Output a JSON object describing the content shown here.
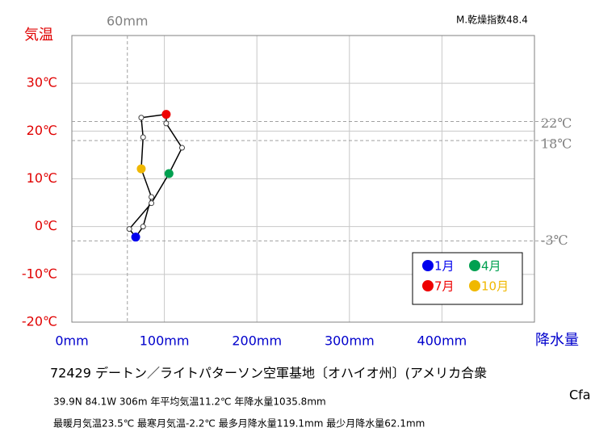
{
  "chart_data": {
    "type": "line",
    "title": "72429  デートン／ライトパターソン空軍基地〔オハイオ州〕(アメリカ合衆",
    "climate_class": "Cfa",
    "index_label": "M.乾燥指数48.4",
    "stats": [
      "39.9N  84.1W 306m  年平均気温11.2℃ 年降水量1035.8mm",
      "最暖月気温23.5℃ 最寒月気温-2.2℃ 最多月降水量119.1mm 最少月降水量62.1mm"
    ],
    "xlabel": "降水量",
    "ylabel": "気温",
    "xlim": [
      0,
      500
    ],
    "ylim": [
      -20,
      40
    ],
    "xticks": [
      {
        "value": 0,
        "label": "0mm"
      },
      {
        "value": 100,
        "label": "100mm"
      },
      {
        "value": 200,
        "label": "200mm"
      },
      {
        "value": 300,
        "label": "300mm"
      },
      {
        "value": 400,
        "label": "400mm"
      }
    ],
    "yticks": [
      {
        "value": -20,
        "label": "-20℃"
      },
      {
        "value": -10,
        "label": "-10℃"
      },
      {
        "value": 0,
        "label": "0℃"
      },
      {
        "value": 10,
        "label": "10℃"
      },
      {
        "value": 20,
        "label": "20℃"
      },
      {
        "value": 30,
        "label": "30℃"
      }
    ],
    "grid": true,
    "ref_x": [
      {
        "value": 60,
        "label": "60mm"
      }
    ],
    "ref_y": [
      {
        "value": 22,
        "label": "22℃"
      },
      {
        "value": 18,
        "label": "18℃"
      },
      {
        "value": -3,
        "label": "-3℃"
      }
    ],
    "series": [
      {
        "color": "#000000",
        "x": [
          69,
          62.1,
          86,
          105,
          119.1,
          102,
          102,
          75,
          77,
          75,
          86,
          77
        ],
        "values": [
          -2.2,
          -0.5,
          4.9,
          11.1,
          16.5,
          21.6,
          23.5,
          22.8,
          18.7,
          12.1,
          6.2,
          0
        ],
        "point_colors": [
          "#0000ee",
          "#ffffff",
          "#ffffff",
          "#00a050",
          "#ffffff",
          "#ffffff",
          "#ee0000",
          "#ffffff",
          "#ffffff",
          "#f0b800",
          "#ffffff",
          "#ffffff"
        ]
      }
    ],
    "legend": [
      {
        "name": "1月",
        "color": "#0000ee"
      },
      {
        "name": "4月",
        "color": "#00a050"
      },
      {
        "name": "7月",
        "color": "#ee0000"
      },
      {
        "name": "10月",
        "color": "#f0b800"
      }
    ]
  }
}
